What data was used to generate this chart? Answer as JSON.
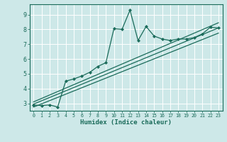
{
  "title": "",
  "xlabel": "Humidex (Indice chaleur)",
  "ylabel": "",
  "bg_color": "#cde8e8",
  "line_color": "#1a6b5a",
  "grid_color": "#ffffff",
  "xlim": [
    -0.5,
    23.5
  ],
  "ylim": [
    2.5,
    9.7
  ],
  "xticks": [
    0,
    1,
    2,
    3,
    4,
    5,
    6,
    7,
    8,
    9,
    10,
    11,
    12,
    13,
    14,
    15,
    16,
    17,
    18,
    19,
    20,
    21,
    22,
    23
  ],
  "yticks": [
    3,
    4,
    5,
    6,
    7,
    8,
    9
  ],
  "curve1_x": [
    0,
    1,
    2,
    3,
    4,
    5,
    6,
    7,
    8,
    9,
    10,
    11,
    12,
    13,
    14,
    15,
    16,
    17,
    18,
    19,
    20,
    21,
    22,
    23
  ],
  "curve1_y": [
    2.9,
    2.85,
    2.9,
    2.75,
    4.5,
    4.65,
    4.85,
    5.1,
    5.5,
    5.75,
    8.05,
    8.0,
    9.3,
    7.25,
    8.2,
    7.55,
    7.35,
    7.25,
    7.35,
    7.35,
    7.45,
    7.7,
    8.15,
    8.1
  ],
  "line1_x": [
    0,
    23
  ],
  "line1_y": [
    2.95,
    8.1
  ],
  "line2_x": [
    0,
    23
  ],
  "line2_y": [
    2.75,
    7.75
  ],
  "line3_x": [
    0,
    23
  ],
  "line3_y": [
    3.1,
    8.45
  ]
}
